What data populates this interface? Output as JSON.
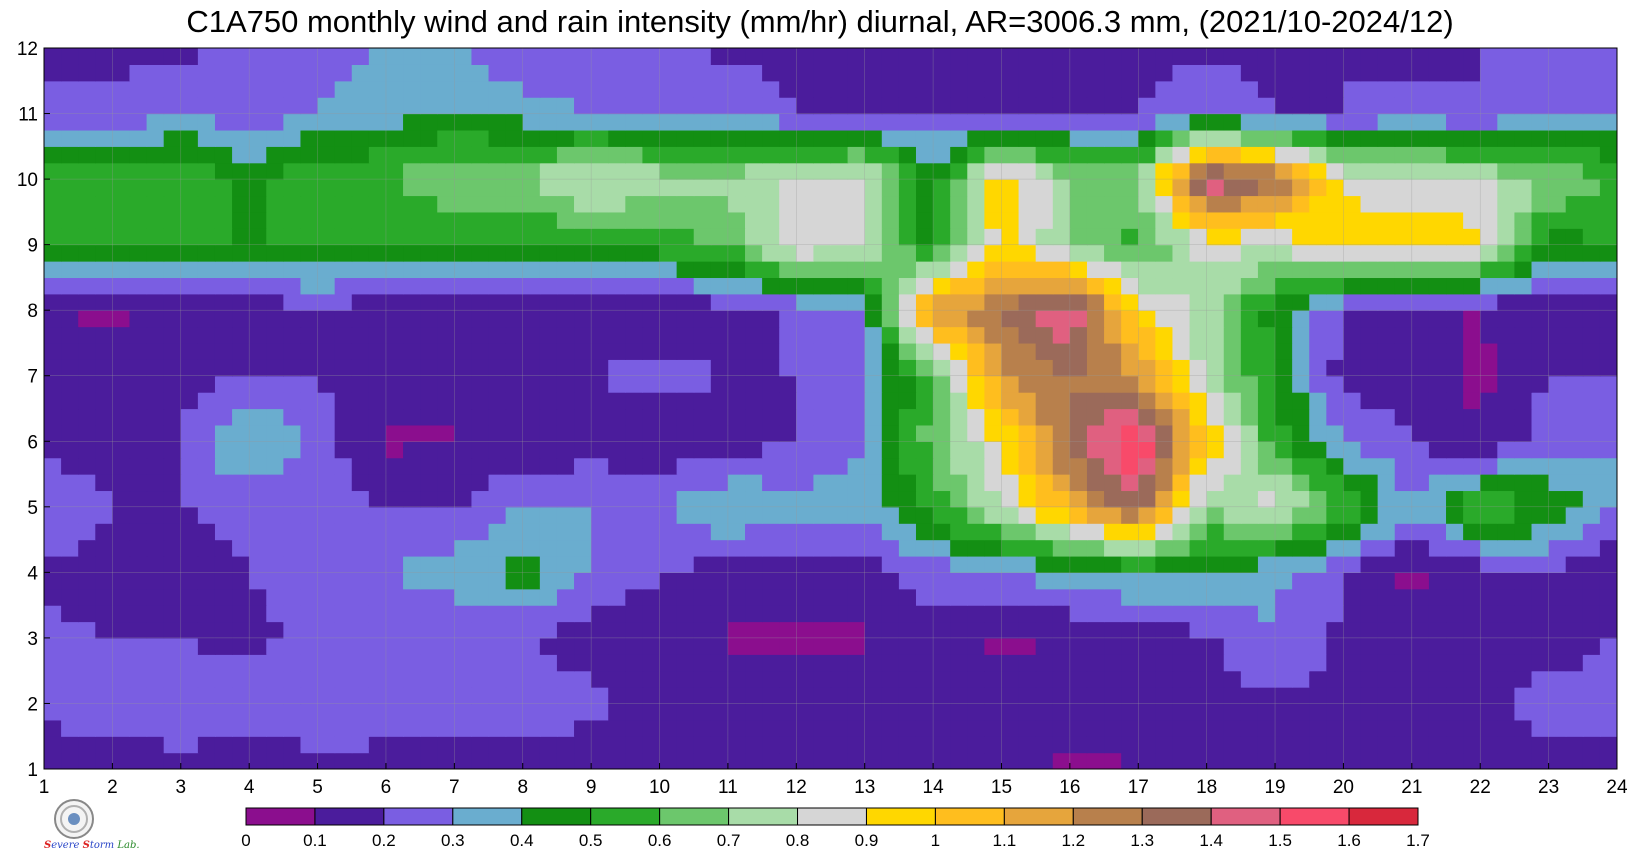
{
  "title": "C1A750 monthly wind and rain intensity (mm/hr) diurnal, AR=3006.3 mm, (2021/10-2024/12)",
  "logo": {
    "line1": "S",
    "line2": "evere",
    "line3": "torm",
    "lab": "Lab.",
    "icon": "seal-icon"
  },
  "chart_data": {
    "type": "heatmap",
    "title": "C1A750 monthly wind and rain intensity (mm/hr) diurnal, AR=3006.3 mm, (2021/10-2024/12)",
    "xlabel": "",
    "ylabel": "",
    "x": [
      1,
      2,
      3,
      4,
      5,
      6,
      7,
      8,
      9,
      10,
      11,
      12,
      13,
      14,
      15,
      16,
      17,
      18,
      19,
      20,
      21,
      22,
      23,
      24
    ],
    "y": [
      1,
      2,
      3,
      4,
      5,
      6,
      7,
      8,
      9,
      10,
      11,
      12
    ],
    "xlim": [
      1,
      24
    ],
    "ylim": [
      1,
      12
    ],
    "grid": true,
    "colorbar": {
      "ticks": [
        "0",
        "0.1",
        "0.2",
        "0.3",
        "0.4",
        "0.5",
        "0.6",
        "0.7",
        "0.8",
        "0.9",
        "1",
        "1.1",
        "1.2",
        "1.3",
        "1.4",
        "1.5",
        "1.6",
        "1.7"
      ],
      "levels": [
        0,
        0.1,
        0.2,
        0.3,
        0.4,
        0.5,
        0.6,
        0.7,
        0.8,
        0.9,
        1.0,
        1.1,
        1.2,
        1.3,
        1.4,
        1.5,
        1.6,
        1.7
      ],
      "colors": [
        "#8b0e8e",
        "#4b1c9c",
        "#7a5ee2",
        "#6aadcf",
        "#138f13",
        "#2aaa2a",
        "#6cc76c",
        "#a8dca8",
        "#d6d6d6",
        "#ffd700",
        "#ffbe1e",
        "#e6a53c",
        "#b8804c",
        "#9b6a5a",
        "#e06080",
        "#f84a6a",
        "#d8283c"
      ]
    },
    "values": [
      [
        0.15,
        0.15,
        0.18,
        0.15,
        0.15,
        0.15,
        0.15,
        0.15,
        0.15,
        0.15,
        0.15,
        0.15,
        0.15,
        0.15,
        0.12,
        0.08,
        0.1,
        0.12,
        0.15,
        0.15,
        0.15,
        0.15,
        0.15,
        0.15
      ],
      [
        0.22,
        0.25,
        0.25,
        0.25,
        0.3,
        0.28,
        0.25,
        0.28,
        0.22,
        0.18,
        0.15,
        0.15,
        0.12,
        0.15,
        0.15,
        0.15,
        0.15,
        0.15,
        0.18,
        0.15,
        0.15,
        0.15,
        0.25,
        0.25
      ],
      [
        0.22,
        0.2,
        0.2,
        0.18,
        0.22,
        0.25,
        0.22,
        0.2,
        0.15,
        0.12,
        0.09,
        0.08,
        0.09,
        0.15,
        0.07,
        0.12,
        0.15,
        0.18,
        0.3,
        0.18,
        0.12,
        0.15,
        0.15,
        0.2
      ],
      [
        0.18,
        0.17,
        0.15,
        0.2,
        0.25,
        0.3,
        0.35,
        0.45,
        0.3,
        0.2,
        0.15,
        0.15,
        0.15,
        0.25,
        0.3,
        0.35,
        0.4,
        0.4,
        0.32,
        0.2,
        0.08,
        0.15,
        0.2,
        0.1
      ],
      [
        0.3,
        0.2,
        0.2,
        0.22,
        0.25,
        0.2,
        0.2,
        0.3,
        0.3,
        0.3,
        0.4,
        0.35,
        0.35,
        0.55,
        0.8,
        1.1,
        1.4,
        0.7,
        0.85,
        0.6,
        0.3,
        0.6,
        0.5,
        0.3
      ],
      [
        0.15,
        0.15,
        0.2,
        0.45,
        0.25,
        0.08,
        0.1,
        0.1,
        0.15,
        0.12,
        0.15,
        0.2,
        0.3,
        0.65,
        0.9,
        1.35,
        1.62,
        1.0,
        0.55,
        0.3,
        0.2,
        0.1,
        0.25,
        0.3
      ],
      [
        0.18,
        0.15,
        0.15,
        0.2,
        0.2,
        0.15,
        0.1,
        0.2,
        0.2,
        0.25,
        0.2,
        0.2,
        0.3,
        0.6,
        1.2,
        1.3,
        1.2,
        0.75,
        0.5,
        0.15,
        0.15,
        0.08,
        0.2,
        0.2
      ],
      [
        0.1,
        0.08,
        0.15,
        0.1,
        0.2,
        0.1,
        0.1,
        0.1,
        0.15,
        0.1,
        0.15,
        0.22,
        0.3,
        1.2,
        1.3,
        1.5,
        0.95,
        0.75,
        0.45,
        0.2,
        0.1,
        0.1,
        0.15,
        0.1
      ],
      [
        0.5,
        0.52,
        0.5,
        0.5,
        0.5,
        0.5,
        0.48,
        0.48,
        0.5,
        0.55,
        0.6,
        0.9,
        0.8,
        0.45,
        0.95,
        0.7,
        0.55,
        0.85,
        0.8,
        1.0,
        0.95,
        0.95,
        0.45,
        0.5
      ],
      [
        0.55,
        0.55,
        0.6,
        0.45,
        0.6,
        0.6,
        0.7,
        0.7,
        0.85,
        0.75,
        0.75,
        0.8,
        0.85,
        0.45,
        1.0,
        0.7,
        0.7,
        1.5,
        1.35,
        0.85,
        0.85,
        0.8,
        0.7,
        0.6
      ],
      [
        0.25,
        0.22,
        0.3,
        0.25,
        0.3,
        0.35,
        0.42,
        0.35,
        0.3,
        0.3,
        0.3,
        0.2,
        0.2,
        0.2,
        0.2,
        0.2,
        0.2,
        0.3,
        0.2,
        0.2,
        0.25,
        0.2,
        0.3,
        0.3
      ],
      [
        0.15,
        0.18,
        0.18,
        0.22,
        0.25,
        0.3,
        0.3,
        0.2,
        0.2,
        0.2,
        0.18,
        0.15,
        0.15,
        0.15,
        0.15,
        0.15,
        0.15,
        0.18,
        0.15,
        0.2,
        0.15,
        0.2,
        0.2,
        0.2
      ]
    ]
  }
}
